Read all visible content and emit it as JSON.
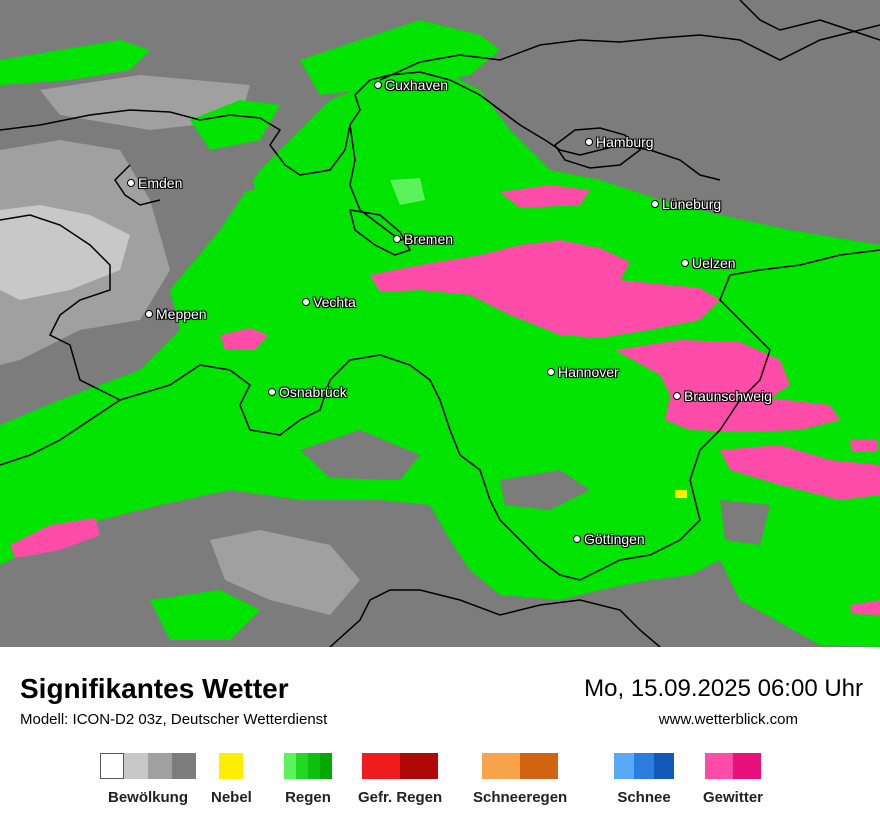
{
  "map": {
    "cities": [
      {
        "name": "Cuxhaven"
      },
      {
        "name": "Hamburg"
      },
      {
        "name": "Emden"
      },
      {
        "name": "Lüneburg"
      },
      {
        "name": "Bremen"
      },
      {
        "name": "Uelzen"
      },
      {
        "name": "Vechta"
      },
      {
        "name": "Meppen"
      },
      {
        "name": "Hannover"
      },
      {
        "name": "Osnabrück"
      },
      {
        "name": "Braunschweig"
      },
      {
        "name": "Göttingen"
      }
    ]
  },
  "footer": {
    "title": "Signifikantes Wetter",
    "subtitle": "Modell: ICON-D2 03z, Deutscher Wetterdienst",
    "datetime": "Mo, 15.09.2025 06:00 Uhr",
    "website": "www.wetterblick.com"
  },
  "legend": [
    {
      "label": "Bewölkung",
      "colors": [
        "#ffffff",
        "#c8c8c8",
        "#a0a0a0",
        "#7c7c7c"
      ]
    },
    {
      "label": "Nebel",
      "colors": [
        "#ffee00"
      ]
    },
    {
      "label": "Regen",
      "colors": [
        "#5cf25c",
        "#22d822",
        "#10c010",
        "#00a800"
      ]
    },
    {
      "label": "Gefr. Regen",
      "colors": [
        "#ee1c1c",
        "#b00808"
      ]
    },
    {
      "label": "Schneeregen",
      "colors": [
        "#f8a44c",
        "#d06410"
      ]
    },
    {
      "label": "Schnee",
      "colors": [
        "#5aa8f8",
        "#2a7ee0",
        "#125ab8"
      ]
    },
    {
      "label": "Gewitter",
      "colors": [
        "#ff4ca8",
        "#e8107a"
      ]
    }
  ],
  "colors": {
    "cloud_dark": "#7c7c7c",
    "cloud_mid": "#a0a0a0",
    "cloud_light": "#c8c8c8",
    "rain": "#00e400",
    "rain_light": "#5cf25c",
    "thunder": "#ff4ca8",
    "fog": "#ffee00"
  }
}
